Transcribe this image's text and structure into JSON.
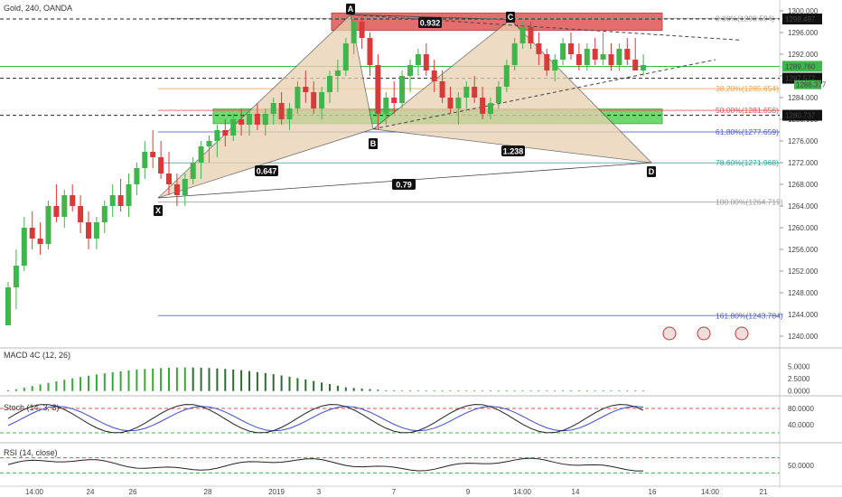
{
  "header": {
    "symbol": "Gold, 240, OANDA"
  },
  "colors": {
    "up": "#3fb54b",
    "down": "#d83a3a",
    "pattern_fill": "#e8d0b0",
    "red_zone": "#e05555",
    "green_zone": "#4ccf4c",
    "macd": "#33aa33",
    "stoch_k": "#222222",
    "stoch_d": "#3b4cc8",
    "rsi": "#222222"
  },
  "chart_data": [
    {
      "type": "candlestick",
      "title": "Gold, 240, OANDA",
      "ylim": [
        1238,
        1301
      ],
      "y_ticks": [
        "1300.000",
        "1296.000",
        "1292.000",
        "1288.000",
        "1284.000",
        "1280.000",
        "1276.000",
        "1272.000",
        "1268.000",
        "1264.000",
        "1260.000",
        "1256.000",
        "1252.000",
        "1248.000",
        "1244.000",
        "1240.000"
      ],
      "x_ticks": [
        "14:00",
        "24",
        "26",
        "28",
        "2019",
        "3",
        "7",
        "9",
        "14:00",
        "14",
        "16",
        "14:00",
        "21"
      ],
      "price_labels": {
        "top": "1298.497",
        "current": "1289.760",
        "small": "1286.377",
        "level2": "1287.572",
        "bottom": "1280.737"
      },
      "candles": [
        [
          1242,
          1250,
          1242,
          1249
        ],
        [
          1249,
          1256,
          1245,
          1253
        ],
        [
          1253,
          1262,
          1252,
          1260
        ],
        [
          1260,
          1263,
          1256,
          1258
        ],
        [
          1258,
          1261,
          1255,
          1257
        ],
        [
          1257,
          1265,
          1256,
          1264
        ],
        [
          1264,
          1268,
          1261,
          1262
        ],
        [
          1262,
          1267,
          1260,
          1266
        ],
        [
          1266,
          1268,
          1263,
          1264
        ],
        [
          1264,
          1266,
          1259,
          1261
        ],
        [
          1261,
          1263,
          1256,
          1258
        ],
        [
          1258,
          1262,
          1256,
          1261
        ],
        [
          1261,
          1265,
          1259,
          1264
        ],
        [
          1264,
          1268,
          1262,
          1266
        ],
        [
          1266,
          1269,
          1263,
          1264
        ],
        [
          1264,
          1270,
          1262,
          1268
        ],
        [
          1268,
          1272,
          1266,
          1271
        ],
        [
          1271,
          1276,
          1269,
          1274
        ],
        [
          1274,
          1278,
          1271,
          1273
        ],
        [
          1273,
          1276,
          1269,
          1270
        ],
        [
          1270,
          1274,
          1266,
          1268
        ],
        [
          1268,
          1270,
          1264,
          1266
        ],
        [
          1266,
          1270,
          1264,
          1269
        ],
        [
          1269,
          1273,
          1268,
          1272
        ],
        [
          1272,
          1276,
          1269,
          1275
        ],
        [
          1275,
          1277,
          1272,
          1276
        ],
        [
          1276,
          1279,
          1273,
          1278
        ],
        [
          1278,
          1280,
          1275,
          1277
        ],
        [
          1277,
          1281,
          1276,
          1280
        ],
        [
          1280,
          1282,
          1277,
          1279
        ],
        [
          1279,
          1282,
          1277,
          1281
        ],
        [
          1281,
          1283,
          1278,
          1279
        ],
        [
          1279,
          1282,
          1277,
          1281
        ],
        [
          1281,
          1284,
          1279,
          1283
        ],
        [
          1283,
          1285,
          1279,
          1280
        ],
        [
          1280,
          1283,
          1278,
          1282
        ],
        [
          1282,
          1287,
          1281,
          1286
        ],
        [
          1286,
          1289,
          1283,
          1285
        ],
        [
          1285,
          1287,
          1281,
          1282
        ],
        [
          1282,
          1286,
          1280,
          1285
        ],
        [
          1285,
          1289,
          1283,
          1288
        ],
        [
          1288,
          1291,
          1285,
          1289
        ],
        [
          1289,
          1295,
          1288,
          1294
        ],
        [
          1294,
          1299,
          1292,
          1298
        ],
        [
          1298,
          1299,
          1293,
          1295
        ],
        [
          1295,
          1296,
          1288,
          1290
        ],
        [
          1290,
          1292,
          1278,
          1281
        ],
        [
          1281,
          1285,
          1279,
          1284
        ],
        [
          1284,
          1287,
          1281,
          1283
        ],
        [
          1283,
          1289,
          1282,
          1288
        ],
        [
          1288,
          1291,
          1285,
          1290
        ],
        [
          1290,
          1293,
          1288,
          1292
        ],
        [
          1292,
          1294,
          1288,
          1289
        ],
        [
          1289,
          1291,
          1285,
          1287
        ],
        [
          1287,
          1289,
          1283,
          1284
        ],
        [
          1284,
          1286,
          1281,
          1282
        ],
        [
          1282,
          1285,
          1279,
          1284
        ],
        [
          1284,
          1287,
          1282,
          1286
        ],
        [
          1286,
          1288,
          1283,
          1284
        ],
        [
          1284,
          1286,
          1280,
          1281
        ],
        [
          1281,
          1284,
          1280,
          1283
        ],
        [
          1283,
          1287,
          1282,
          1286
        ],
        [
          1286,
          1291,
          1285,
          1290
        ],
        [
          1290,
          1295,
          1289,
          1294
        ],
        [
          1294,
          1298,
          1293,
          1297
        ],
        [
          1297,
          1298,
          1293,
          1294
        ],
        [
          1294,
          1296,
          1290,
          1292
        ],
        [
          1292,
          1293,
          1288,
          1289
        ],
        [
          1289,
          1292,
          1287,
          1291
        ],
        [
          1291,
          1295,
          1290,
          1294
        ],
        [
          1294,
          1296,
          1291,
          1292
        ],
        [
          1292,
          1294,
          1289,
          1290
        ],
        [
          1290,
          1294,
          1289,
          1293
        ],
        [
          1293,
          1295,
          1290,
          1291
        ],
        [
          1291,
          1296,
          1290,
          1292
        ],
        [
          1292,
          1294,
          1289,
          1290
        ],
        [
          1290,
          1294,
          1289,
          1293
        ],
        [
          1293,
          1295,
          1290,
          1291
        ],
        [
          1291,
          1295,
          1289,
          1289
        ],
        [
          1289,
          1292,
          1288,
          1290
        ]
      ],
      "pattern_points": [
        {
          "label": "X",
          "price": 1265.5
        },
        {
          "label": "A",
          "price": 1299.3
        },
        {
          "label": "B",
          "price": 1278.2
        },
        {
          "label": "C",
          "price": 1298.4
        },
        {
          "label": "D",
          "price": 1272.0
        }
      ],
      "ratios": [
        "0.647",
        "0.932",
        "1.238",
        "0.79"
      ],
      "fib_levels": [
        {
          "label": "0.00%(1298.594)",
          "price": 1298.594,
          "color": "#999999"
        },
        {
          "label": "38.20%(1285.654)",
          "price": 1285.654,
          "color": "#f0a040"
        },
        {
          "label": "50.00%(1281.656)",
          "price": 1281.656,
          "color": "#e05050"
        },
        {
          "label": "61.80%(1277.659)",
          "price": 1277.659,
          "color": "#4a58c8"
        },
        {
          "label": "78.60%(1271.968)",
          "price": 1271.968,
          "color": "#3aa0a0"
        },
        {
          "label": "100.00%(1264.719)",
          "price": 1264.719,
          "color": "#999999"
        },
        {
          "label": "161.80%(1243.784)",
          "price": 1243.784,
          "color": "#4a58c8"
        }
      ],
      "zones": [
        {
          "name": "red",
          "price_top": 1299.6,
          "price_bottom": 1296.4
        },
        {
          "name": "green",
          "price_top": 1281.9,
          "price_bottom": 1279.2
        }
      ]
    },
    {
      "type": "bar",
      "title": "MACD 4C (12, 26)",
      "ylim": [
        -0.6,
        7.5
      ],
      "y_ticks": [
        "5.0000",
        "2.5000",
        "0.0000"
      ]
    },
    {
      "type": "line",
      "title": "Stoch (14, 3, 3)",
      "ylim": [
        0,
        100
      ],
      "y_ticks": [
        "80.0000",
        "40.0000"
      ],
      "bands": [
        80,
        20
      ]
    },
    {
      "type": "line",
      "title": "RSI (14, close)",
      "ylim": [
        0,
        100
      ],
      "y_ticks": [
        "50.0000"
      ],
      "bands": [
        70,
        30
      ]
    }
  ]
}
